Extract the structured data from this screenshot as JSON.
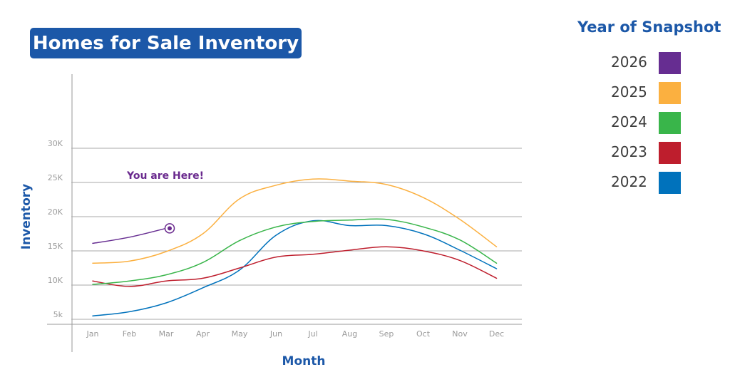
{
  "chart_data": {
    "type": "line",
    "title": "Homes for Sale Inventory",
    "xlabel": "Month",
    "ylabel": "Inventory",
    "categories": [
      "Jan",
      "Feb",
      "Mar",
      "Apr",
      "May",
      "Jun",
      "Jul",
      "Aug",
      "Sep",
      "Oct",
      "Nov",
      "Dec"
    ],
    "y_ticks": [
      {
        "value": 5000,
        "label": "5k"
      },
      {
        "value": 10000,
        "label": "10K"
      },
      {
        "value": 15000,
        "label": "15K"
      },
      {
        "value": 20000,
        "label": "20K"
      },
      {
        "value": 25000,
        "label": "25K"
      },
      {
        "value": 30000,
        "label": "30K"
      }
    ],
    "ylim": [
      0,
      30000
    ],
    "grid": true,
    "legend_title": "Year of Snapshot",
    "legend_position": "right",
    "annotation": {
      "text": "You are Here!",
      "series": "2026",
      "category": "Mar",
      "color": "#6a2a8e"
    },
    "series": [
      {
        "name": "2026",
        "color": "#662d91",
        "values": [
          16100,
          17000,
          18300,
          null,
          null,
          null,
          null,
          null,
          null,
          null,
          null,
          null
        ]
      },
      {
        "name": "2025",
        "color": "#fbb040",
        "values": [
          13200,
          13500,
          14900,
          17500,
          22600,
          24600,
          25500,
          25200,
          24700,
          22800,
          19600,
          15600
        ]
      },
      {
        "name": "2024",
        "color": "#39b54a",
        "values": [
          10100,
          10600,
          11500,
          13300,
          16500,
          18500,
          19300,
          19500,
          19600,
          18500,
          16600,
          13200
        ]
      },
      {
        "name": "2023",
        "color": "#be1e2d",
        "values": [
          10600,
          9800,
          10600,
          11000,
          12500,
          14100,
          14500,
          15100,
          15600,
          15000,
          13600,
          11000
        ]
      },
      {
        "name": "2022",
        "color": "#0072bc",
        "values": [
          5500,
          6100,
          7400,
          9600,
          12200,
          17300,
          19400,
          18700,
          18700,
          17500,
          15100,
          12400
        ]
      }
    ]
  }
}
